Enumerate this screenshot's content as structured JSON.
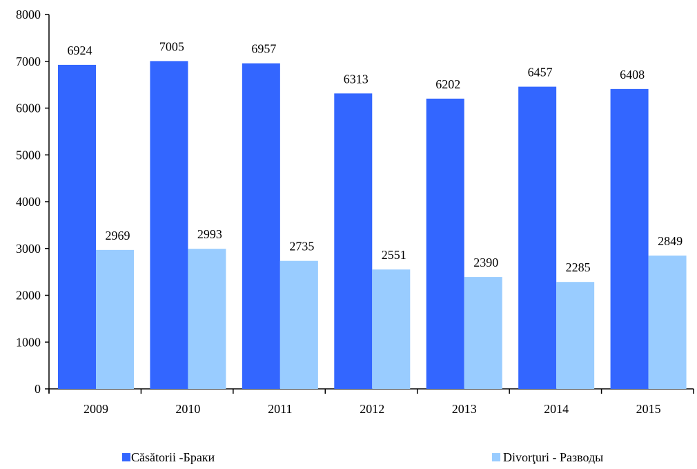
{
  "chart_data": {
    "type": "bar",
    "categories": [
      "2009",
      "2010",
      "2011",
      "2012",
      "2013",
      "2014",
      "2015"
    ],
    "series": [
      {
        "name": "Căsătorii -Браки",
        "color": "#3366ff",
        "values": [
          6924,
          7005,
          6957,
          6313,
          6202,
          6457,
          6408
        ]
      },
      {
        "name": "Divorţuri - Разводы",
        "color": "#99ccff",
        "values": [
          2969,
          2993,
          2735,
          2551,
          2390,
          2285,
          2849
        ]
      }
    ],
    "ylim": [
      0,
      8000
    ],
    "yticks": [
      "0",
      "1000",
      "2000",
      "3000",
      "4000",
      "5000",
      "6000",
      "7000",
      "8000"
    ],
    "grid": false,
    "legend": "bottom",
    "data_labels": true
  }
}
